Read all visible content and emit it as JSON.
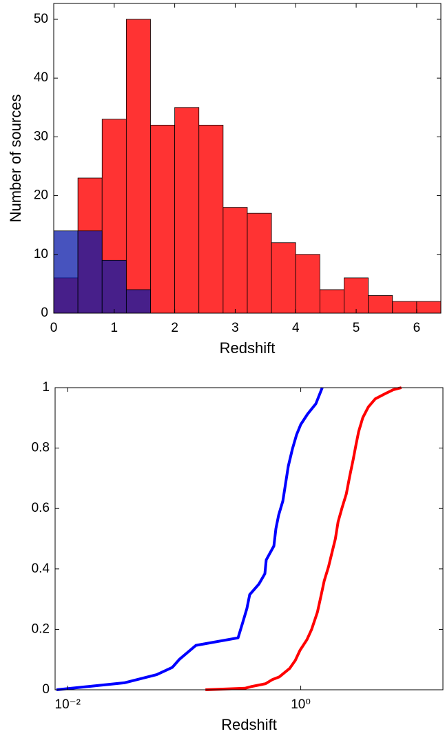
{
  "chart_data": [
    {
      "type": "histogram",
      "xlabel": "Redshift",
      "ylabel": "Number of sources",
      "xlim": [
        0,
        6.4
      ],
      "ylim": [
        0,
        52.7
      ],
      "xticks": [
        0,
        1,
        2,
        3,
        4,
        5,
        6
      ],
      "yticks": [
        0,
        10,
        20,
        30,
        40,
        50
      ],
      "series": [
        {
          "color": "#ff3333",
          "bins": [
            0,
            0.4,
            0.8,
            1.2,
            1.6,
            2.0,
            2.4,
            2.8,
            3.2,
            3.6,
            4.0,
            4.4,
            4.8,
            5.2,
            5.6,
            6.0,
            6.4
          ],
          "values": [
            6,
            23,
            33,
            50,
            32,
            35,
            32,
            18,
            17,
            12,
            10,
            4,
            6,
            3,
            2,
            2
          ]
        },
        {
          "color": "#0a1aa8",
          "opacity": 0.75,
          "bins": [
            0,
            0.4,
            0.8,
            1.2,
            1.6
          ],
          "values": [
            14,
            14,
            9,
            4
          ]
        }
      ]
    },
    {
      "type": "line",
      "xlabel": "Redshift",
      "xscale": "log",
      "xlim": [
        0.0078,
        16.6
      ],
      "ylim": [
        0,
        1
      ],
      "xticks": [
        {
          "value": 0.01,
          "label": "10⁻²"
        },
        {
          "value": 1,
          "label": "10⁰"
        }
      ],
      "yticks": [
        0,
        0.2,
        0.4,
        0.6,
        0.8,
        1
      ],
      "series": [
        {
          "color": "#0000ff",
          "x": [
            0.008,
            0.0306,
            0.058,
            0.079,
            0.091,
            0.126,
            0.29,
            0.318,
            0.345,
            0.365,
            0.436,
            0.492,
            0.506,
            0.588,
            0.612,
            0.647,
            0.702,
            0.741,
            0.782,
            0.849,
            0.921,
            1.0,
            1.146,
            1.35,
            1.53
          ],
          "values": [
            0,
            0.023,
            0.05,
            0.074,
            0.101,
            0.147,
            0.172,
            0.223,
            0.269,
            0.315,
            0.349,
            0.384,
            0.43,
            0.476,
            0.533,
            0.579,
            0.625,
            0.683,
            0.74,
            0.798,
            0.844,
            0.878,
            0.913,
            0.947,
            1.0
          ]
        },
        {
          "color": "#ff0000",
          "x": [
            0.152,
            0.332,
            0.38,
            0.499,
            0.572,
            0.656,
            0.804,
            0.897,
            0.987,
            1.13,
            1.24,
            1.39,
            1.5,
            1.59,
            1.73,
            1.85,
            1.98,
            2.09,
            2.26,
            2.46,
            2.63,
            2.82,
            2.97,
            3.14,
            3.41,
            3.8,
            4.36,
            5.42,
            6.21,
            7.31
          ],
          "values": [
            0,
            0.005,
            0.011,
            0.02,
            0.034,
            0.043,
            0.071,
            0.097,
            0.131,
            0.166,
            0.2,
            0.257,
            0.315,
            0.361,
            0.407,
            0.453,
            0.499,
            0.556,
            0.602,
            0.648,
            0.706,
            0.763,
            0.809,
            0.855,
            0.901,
            0.936,
            0.963,
            0.982,
            0.993,
            1.0
          ]
        }
      ]
    }
  ]
}
